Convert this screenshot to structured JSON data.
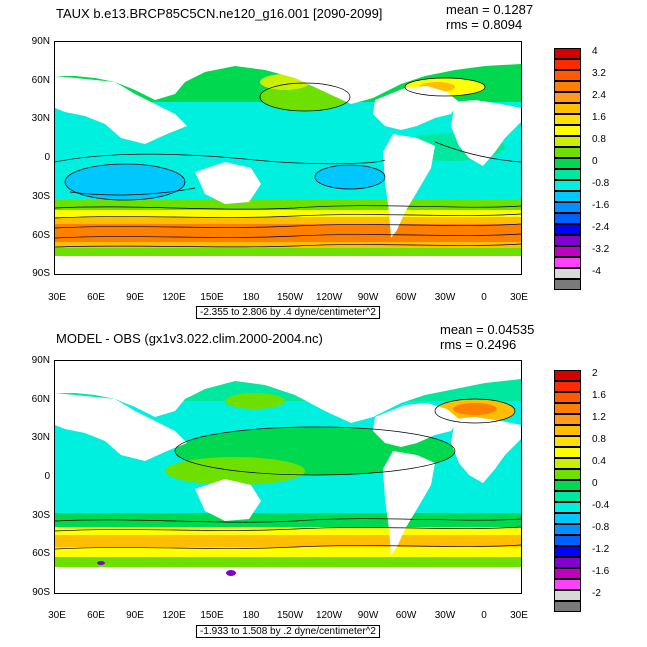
{
  "panels": [
    {
      "title": "TAUX b.e13.BRCP85C5CN.ne120_g16.001 [2090-2099]",
      "mean": "mean = 0.1287",
      "rms": "rms = 0.8094",
      "caption": "-2.355 to 2.806 by .4 dyne/centimeter^2",
      "lat_labels": [
        "90N",
        "60N",
        "30N",
        "0",
        "30S",
        "60S",
        "90S"
      ],
      "lon_labels": [
        "30E",
        "60E",
        "90E",
        "120E",
        "150E",
        "180",
        "150W",
        "120W",
        "90W",
        "60W",
        "30W",
        "0",
        "30E"
      ],
      "colorbar": {
        "labels": [
          "4",
          "3.2",
          "2.4",
          "1.6",
          "0.8",
          "0",
          "-0.8",
          "-1.6",
          "-2.4",
          "-3.2",
          "-4"
        ],
        "colors": [
          "#d40000",
          "#ff2a00",
          "#ff5a00",
          "#ff8000",
          "#ff9a1a",
          "#ffbf00",
          "#ffe000",
          "#ffff00",
          "#c8f000",
          "#6ee000",
          "#00d850",
          "#00e8a0",
          "#00f0e0",
          "#00c8ff",
          "#0090ff",
          "#0060ff",
          "#0000ff",
          "#8000d0",
          "#c000c0",
          "#ff40ff",
          "#d8d8d8",
          "#7a7a7a"
        ]
      }
    },
    {
      "title": "MODEL - OBS (gx1v3.022.clim.2000-2004.nc)",
      "mean": "mean = 0.04535",
      "rms": "rms = 0.2496",
      "caption": "-1.933 to 1.508 by .2 dyne/centimeter^2",
      "lat_labels": [
        "90N",
        "60N",
        "30N",
        "0",
        "30S",
        "60S",
        "90S"
      ],
      "lon_labels": [
        "30E",
        "60E",
        "90E",
        "120E",
        "150E",
        "180",
        "150W",
        "120W",
        "90W",
        "60W",
        "30W",
        "0",
        "30E"
      ],
      "colorbar": {
        "labels": [
          "2",
          "1.6",
          "1.2",
          "0.8",
          "0.4",
          "0",
          "-0.4",
          "-0.8",
          "-1.2",
          "-1.6",
          "-2"
        ],
        "colors": [
          "#d40000",
          "#ff2a00",
          "#ff5a00",
          "#ff8000",
          "#ff9a1a",
          "#ffbf00",
          "#ffe000",
          "#ffff00",
          "#c8f000",
          "#6ee000",
          "#00d850",
          "#00e8a0",
          "#00f0e0",
          "#00c8ff",
          "#0090ff",
          "#0060ff",
          "#0000ff",
          "#8000d0",
          "#c000c0",
          "#ff40ff",
          "#d8d8d8",
          "#7a7a7a"
        ]
      }
    }
  ]
}
